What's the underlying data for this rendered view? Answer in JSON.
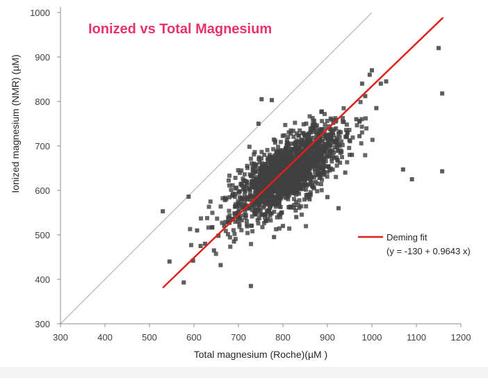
{
  "chart_data": {
    "type": "scatter",
    "title": "Ionized vs Total Magnesium",
    "xlabel": "Total magnesium (Roche)(µM )",
    "ylabel": "Ionized magnesium (NMR) (µM)",
    "xlim": [
      300,
      1200
    ],
    "ylim": [
      300,
      1000
    ],
    "xticks": [
      "300",
      "400",
      "500",
      "600",
      "700",
      "800",
      "900",
      "1000",
      "1100",
      "1200"
    ],
    "yticks": [
      "300",
      "400",
      "500",
      "600",
      "700",
      "800",
      "900",
      "1000"
    ],
    "grid": false,
    "legend_position": "right",
    "colors": {
      "title": "#e8336d",
      "points": "#404040",
      "fit": "#e0201b",
      "identity": "#b4b4b4"
    },
    "identity_line": {
      "from": [
        300,
        300
      ],
      "to": [
        1000,
        1000
      ]
    },
    "fit": {
      "name": "Deming fit",
      "equation": "(y = -130 + 0.9643 x)",
      "intercept": -130,
      "slope": 0.9643,
      "x_range": [
        530,
        1160
      ]
    },
    "cluster": {
      "center": [
        810,
        640
      ],
      "major_sd": 72,
      "minor_sd": 30,
      "angle_deg": 38,
      "n": 1700
    },
    "points": [
      {
        "x": 530,
        "y": 553
      },
      {
        "x": 545,
        "y": 440
      },
      {
        "x": 577,
        "y": 393
      },
      {
        "x": 588,
        "y": 586
      },
      {
        "x": 598,
        "y": 442
      },
      {
        "x": 607,
        "y": 510
      },
      {
        "x": 615,
        "y": 475
      },
      {
        "x": 625,
        "y": 480
      },
      {
        "x": 645,
        "y": 465
      },
      {
        "x": 655,
        "y": 498
      },
      {
        "x": 660,
        "y": 432
      },
      {
        "x": 668,
        "y": 520
      },
      {
        "x": 690,
        "y": 485
      },
      {
        "x": 700,
        "y": 540
      },
      {
        "x": 715,
        "y": 600
      },
      {
        "x": 728,
        "y": 385
      },
      {
        "x": 735,
        "y": 660
      },
      {
        "x": 745,
        "y": 750
      },
      {
        "x": 752,
        "y": 805
      },
      {
        "x": 760,
        "y": 545
      },
      {
        "x": 775,
        "y": 803
      },
      {
        "x": 780,
        "y": 495
      },
      {
        "x": 800,
        "y": 520
      },
      {
        "x": 830,
        "y": 540
      },
      {
        "x": 860,
        "y": 580
      },
      {
        "x": 870,
        "y": 605
      },
      {
        "x": 900,
        "y": 585
      },
      {
        "x": 925,
        "y": 560
      },
      {
        "x": 940,
        "y": 640
      },
      {
        "x": 955,
        "y": 680
      },
      {
        "x": 965,
        "y": 760
      },
      {
        "x": 972,
        "y": 722
      },
      {
        "x": 978,
        "y": 840
      },
      {
        "x": 985,
        "y": 812
      },
      {
        "x": 995,
        "y": 860
      },
      {
        "x": 1000,
        "y": 870
      },
      {
        "x": 1010,
        "y": 785
      },
      {
        "x": 1020,
        "y": 840
      },
      {
        "x": 1032,
        "y": 845
      },
      {
        "x": 1070,
        "y": 647
      },
      {
        "x": 1090,
        "y": 625
      },
      {
        "x": 1150,
        "y": 920
      },
      {
        "x": 1158,
        "y": 818
      },
      {
        "x": 1158,
        "y": 643
      }
    ]
  }
}
